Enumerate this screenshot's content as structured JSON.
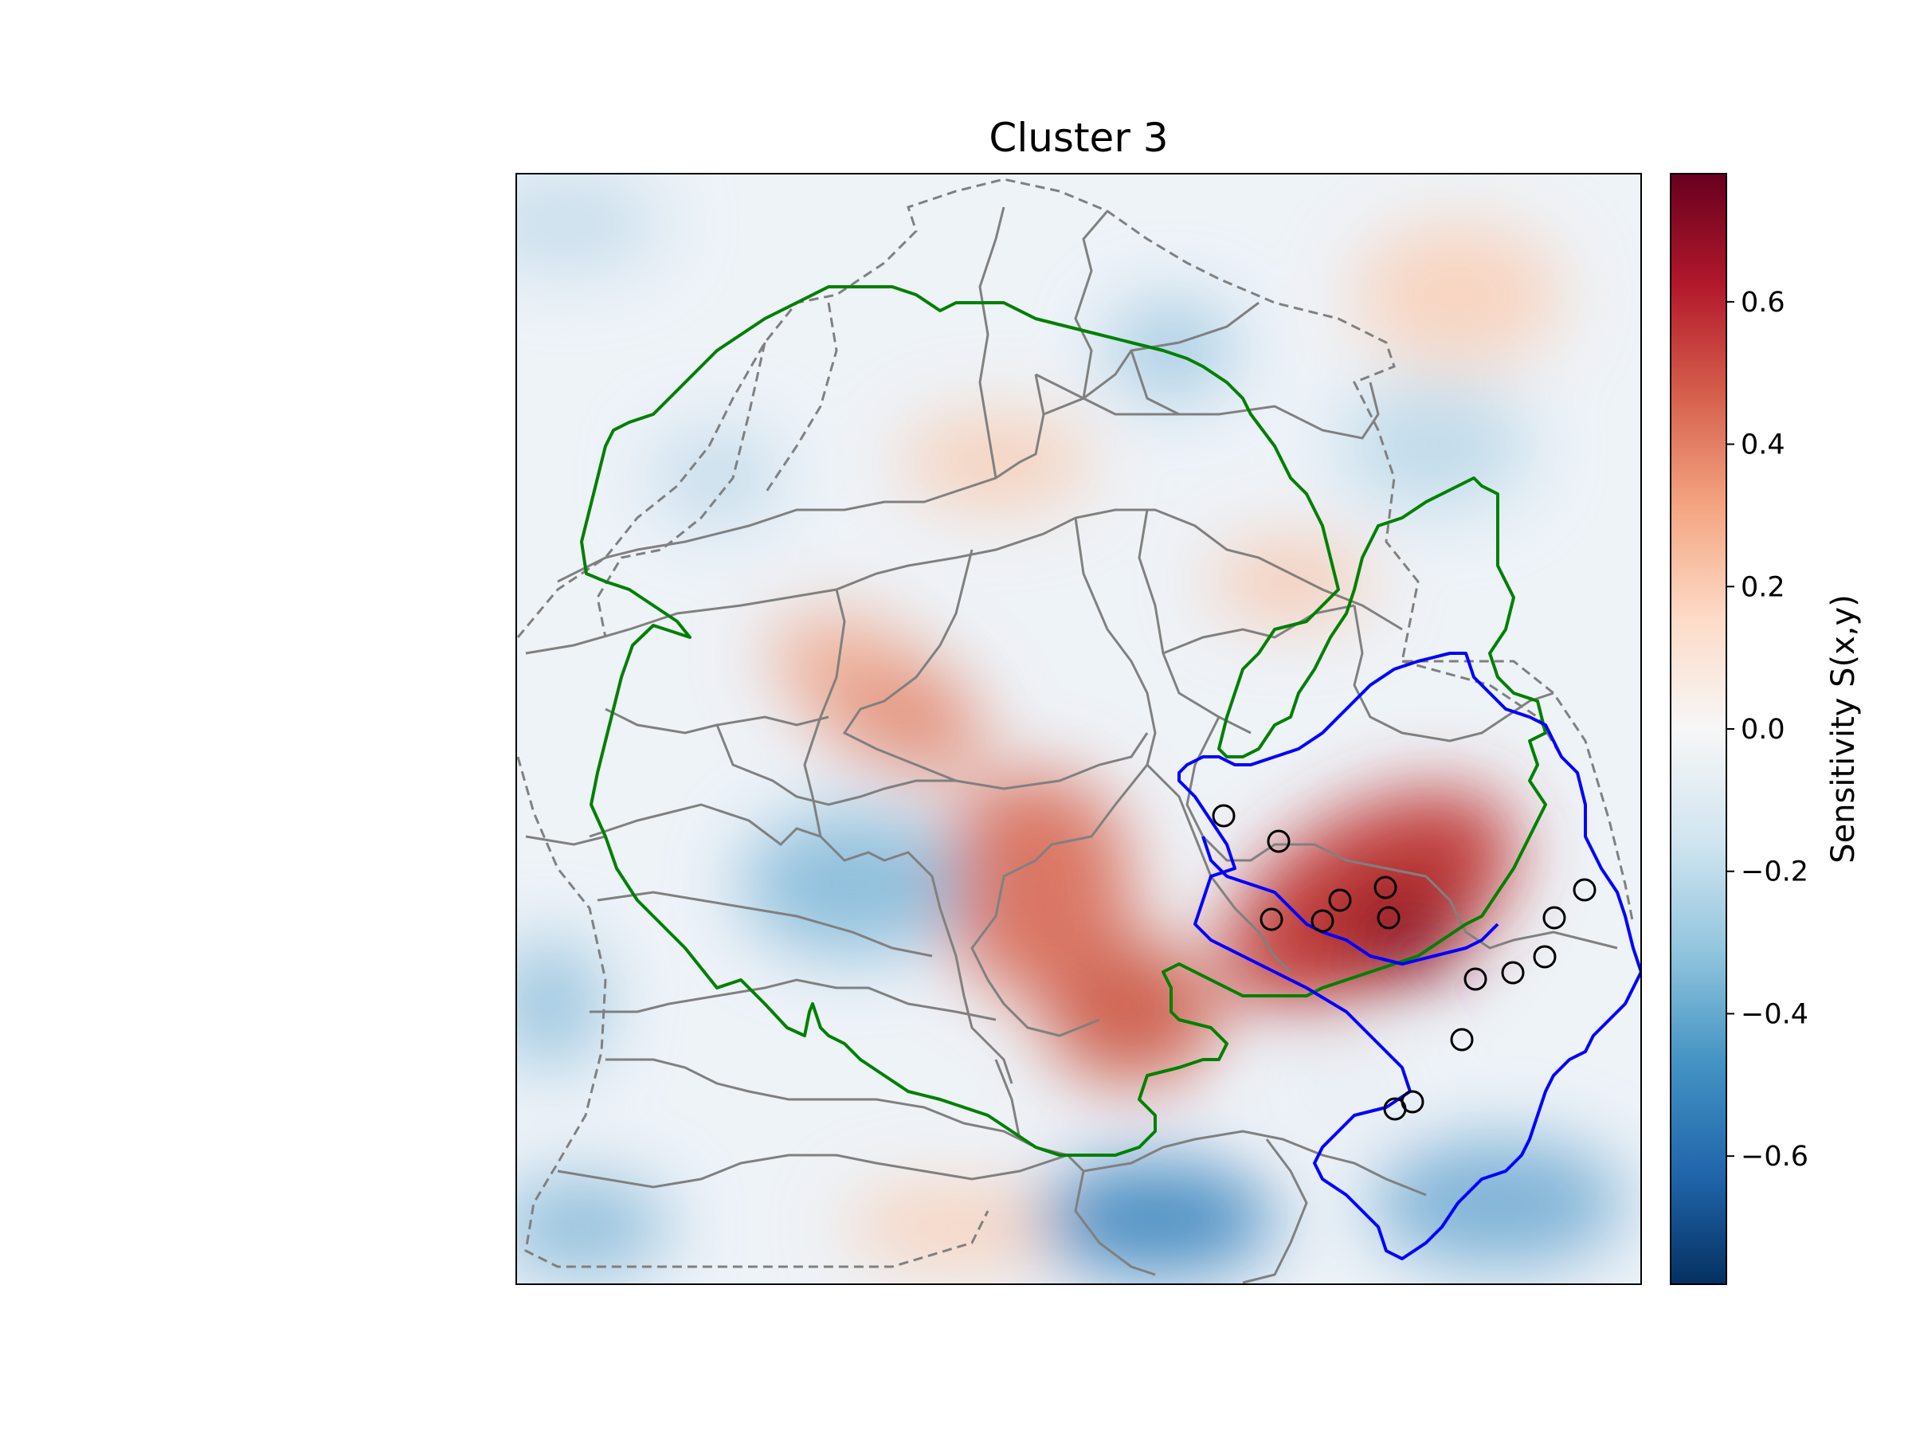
{
  "chart_data": {
    "type": "heatmap",
    "title": "Cluster 3",
    "colorbar": {
      "label": "Sensitivity S(x,y)",
      "range": [
        -0.78,
        0.78
      ],
      "ticks": [
        {
          "value": 0.6,
          "label": "0.6"
        },
        {
          "value": 0.4,
          "label": "0.4"
        },
        {
          "value": 0.2,
          "label": "0.2"
        },
        {
          "value": 0.0,
          "label": "0.0"
        },
        {
          "value": -0.2,
          "label": "−0.2"
        },
        {
          "value": -0.4,
          "label": "−0.4"
        },
        {
          "value": -0.6,
          "label": "−0.6"
        }
      ],
      "colormap": "RdBu_r",
      "colors": [
        "#053061",
        "#2166ac",
        "#4393c3",
        "#92c5de",
        "#d1e5f0",
        "#f7f7f7",
        "#fddbc7",
        "#f4a582",
        "#d6604d",
        "#b2182b",
        "#67001f"
      ]
    },
    "grid": false,
    "overlays": {
      "green_outline_color": "#008000",
      "blue_outline_color": "#0000ff",
      "gray_boundary_color": "#808080",
      "marker_style": "open-circle"
    }
  }
}
